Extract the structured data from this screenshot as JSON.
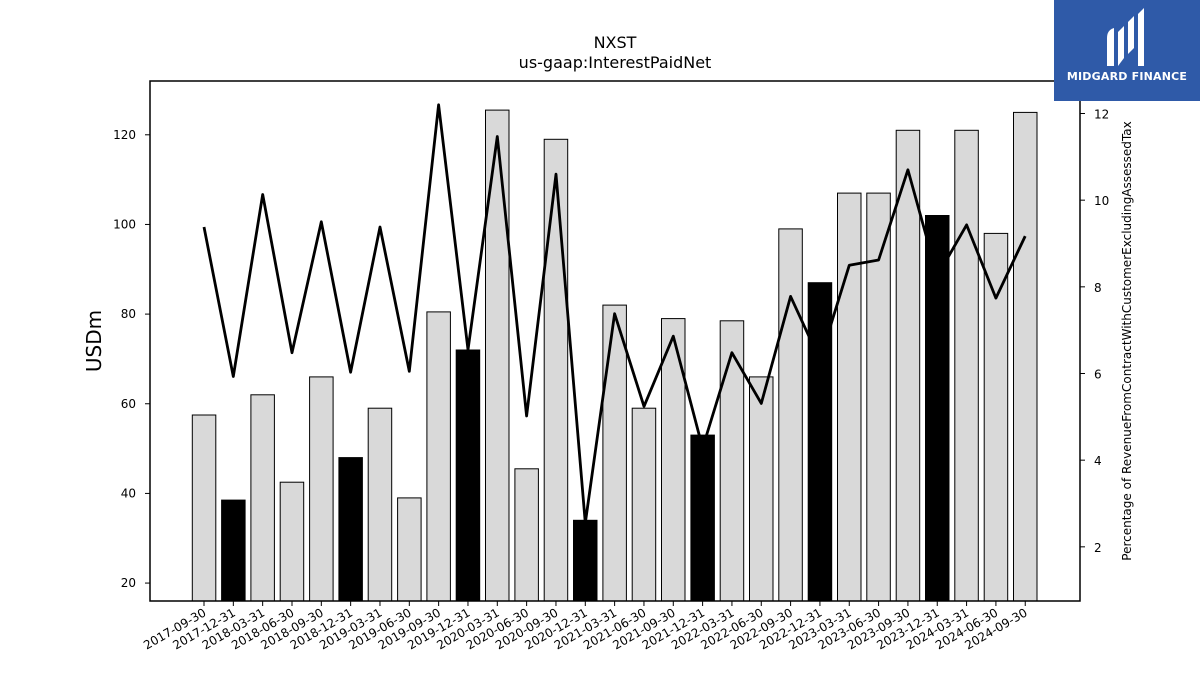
{
  "chart_data": {
    "type": "bar",
    "title": "NXST",
    "subtitle": "us-gaap:InterestPaidNet",
    "ylabel": "USDm",
    "y2label": "Percentage of RevenueFromContractWithCustomerExcludingAssessedTax",
    "ylim": [
      16,
      132
    ],
    "y2lim": [
      0.75,
      12.75
    ],
    "yticks": [
      20,
      40,
      60,
      80,
      100,
      120
    ],
    "y2ticks": [
      2,
      4,
      6,
      8,
      10,
      12
    ],
    "grid": false,
    "categories": [
      "2017-09-30",
      "2017-12-31",
      "2018-03-31",
      "2018-06-30",
      "2018-09-30",
      "2018-12-31",
      "2019-03-31",
      "2019-06-30",
      "2019-09-30",
      "2019-12-31",
      "2020-03-31",
      "2020-06-30",
      "2020-09-30",
      "2020-12-31",
      "2021-03-31",
      "2021-06-30",
      "2021-09-30",
      "2021-12-31",
      "2022-03-31",
      "2022-06-30",
      "2022-09-30",
      "2022-12-31",
      "2023-03-31",
      "2023-06-30",
      "2023-09-30",
      "2023-12-31",
      "2024-03-31",
      "2024-06-30",
      "2024-09-30"
    ],
    "series": [
      {
        "kind": "bar",
        "values": [
          57.5,
          38.5,
          62.0,
          42.5,
          66.0,
          48.0,
          59.0,
          39.0,
          80.5,
          72.0,
          125.5,
          45.5,
          119.0,
          34.0,
          82.0,
          59.0,
          79.0,
          53.0,
          78.5,
          66.0,
          99.0,
          87.0,
          107.0,
          107.0,
          121.0,
          102.0,
          121.0,
          98.0,
          125.0
        ],
        "highlight": [
          false,
          true,
          false,
          false,
          false,
          true,
          false,
          false,
          false,
          true,
          false,
          false,
          false,
          true,
          false,
          false,
          false,
          true,
          false,
          false,
          false,
          true,
          false,
          false,
          false,
          true,
          false,
          false,
          false
        ],
        "color": "#d9d9d9",
        "highlight_color": "#000000"
      },
      {
        "kind": "line",
        "axis": "right",
        "values": [
          9.38,
          5.93,
          10.13,
          6.48,
          9.5,
          6.03,
          9.38,
          6.05,
          12.2,
          6.55,
          11.47,
          5.02,
          10.6,
          2.55,
          7.38,
          5.24,
          6.86,
          4.28,
          6.48,
          5.31,
          7.78,
          6.31,
          8.5,
          8.62,
          10.7,
          8.25,
          9.43,
          7.74,
          9.17
        ],
        "color": "#000000"
      }
    ]
  },
  "logo": {
    "text": "MIDGARD FINANCE",
    "color": "#2f5aa8"
  }
}
